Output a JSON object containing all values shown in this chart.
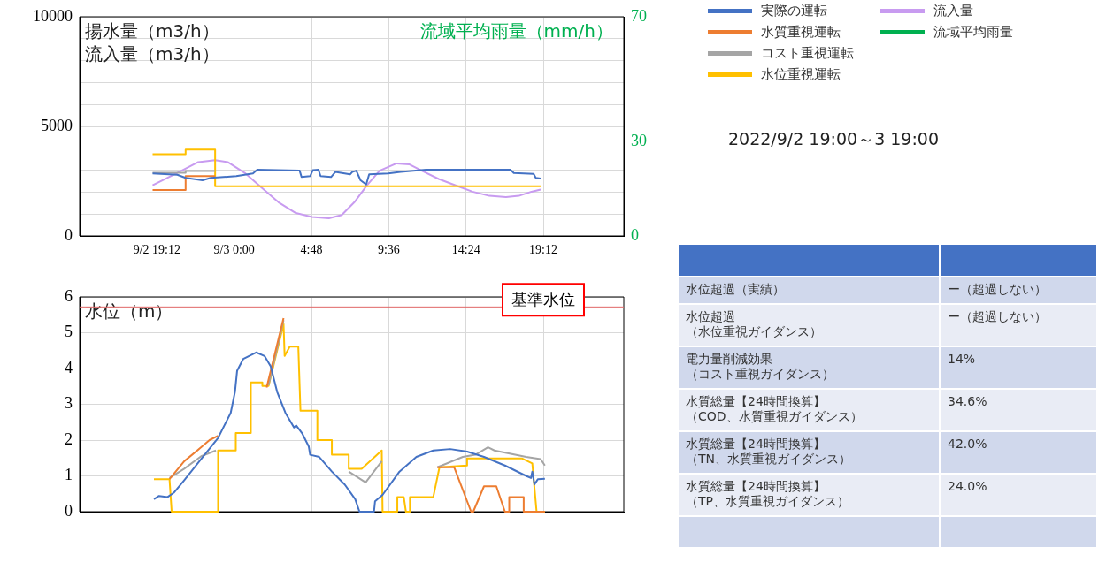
{
  "chart_data": [
    {
      "type": "line",
      "ylabel": "揚水量（m3/h）流入量（m3/h）",
      "y2label": "流域平均雨量（mm/h）",
      "legend": "right",
      "grid": true,
      "xlim": [
        "2022-09-02T14:24",
        "2022-09-04T00:12"
      ],
      "xticks": [
        {
          "value": "2022-09-02T19:12",
          "label": "9/2 19:12"
        },
        {
          "value": "2022-09-03T00:00",
          "label": "9/3 0:00"
        },
        {
          "value": "2022-09-03T04:48",
          "label": "4:48"
        },
        {
          "value": "2022-09-03T09:36",
          "label": "9:36"
        },
        {
          "value": "2022-09-03T14:24",
          "label": "14:24"
        },
        {
          "value": "2022-09-03T19:12",
          "label": "19:12"
        }
      ],
      "ylim": [
        0,
        10000
      ],
      "yticks": [
        0,
        {
          "value": 1000,
          "label": null
        },
        {
          "value": 2000,
          "label": null
        },
        {
          "value": 3000,
          "label": null
        },
        {
          "value": 4000,
          "label": null
        },
        5000,
        {
          "value": 6000,
          "label": null
        },
        {
          "value": 7000,
          "label": null
        },
        {
          "value": 8000,
          "label": null
        },
        {
          "value": 9000,
          "label": null
        },
        10000
      ],
      "y2lim": [
        0,
        70
      ],
      "y2ticks": [
        0,
        30,
        70
      ],
      "series": [
        {
          "name": "実際の運転",
          "color": "#4472c4",
          "x": [
            "2022-09-02T18:56",
            "2022-09-02T20:28",
            "2022-09-02T20:59",
            "2022-09-02T22:02",
            "2022-09-02T22:33",
            "2022-09-03T00:08",
            "2022-09-03T01:10",
            "2022-09-03T01:26",
            "2022-09-03T04:04",
            "2022-09-03T04:11",
            "2022-09-03T04:43",
            "2022-09-03T04:53",
            "2022-09-03T05:14",
            "2022-09-03T05:22",
            "2022-09-03T06:01",
            "2022-09-03T06:17",
            "2022-09-03T07:12",
            "2022-09-03T07:20",
            "2022-09-03T07:35",
            "2022-09-03T07:51",
            "2022-09-03T08:12",
            "2022-09-03T08:23",
            "2022-09-03T09:34",
            "2022-09-03T10:20",
            "2022-09-03T11:55",
            "2022-09-03T17:10",
            "2022-09-03T17:22",
            "2022-09-03T18:36",
            "2022-09-03T18:44",
            "2022-09-03T19:02"
          ],
          "values": [
            2850,
            2790,
            2650,
            2540,
            2650,
            2730,
            2850,
            3020,
            2980,
            2690,
            2730,
            3000,
            3020,
            2730,
            2690,
            2920,
            2810,
            2920,
            2980,
            2540,
            2350,
            2810,
            2850,
            2920,
            3020,
            3020,
            2870,
            2830,
            2650,
            2620
          ]
        },
        {
          "name": "水質重視運転",
          "color": "#ed7d31",
          "x": [
            "2022-09-02T18:56",
            "2022-09-02T20:59",
            "2022-09-02T20:59",
            "2022-09-02T22:49"
          ],
          "values": [
            2100,
            2100,
            2730,
            2730
          ]
        },
        {
          "name": "コスト重視運転",
          "color": "#a5a5a5",
          "x": [
            "2022-09-02T18:56",
            "2022-09-02T20:59",
            "2022-09-02T20:59",
            "2022-09-02T22:49"
          ],
          "values": [
            2880,
            2880,
            2960,
            2960
          ]
        },
        {
          "name": "水位重視運転",
          "color": "#ffc000",
          "x": [
            "2022-09-02T18:56",
            "2022-09-02T20:59",
            "2022-09-02T20:59",
            "2022-09-02T22:49",
            "2022-09-02T22:49",
            "2022-09-03T19:02"
          ],
          "values": [
            3730,
            3730,
            3940,
            3940,
            2270,
            2270
          ]
        },
        {
          "name": "流入量",
          "color": "#c89bf0",
          "x": [
            "2022-09-02T18:56",
            "2022-09-02T20:28",
            "2022-09-02T21:46",
            "2022-09-02T22:49",
            "2022-09-02T23:36",
            "2022-09-03T00:39",
            "2022-09-03T01:42",
            "2022-09-03T02:45",
            "2022-09-03T03:47",
            "2022-09-03T04:50",
            "2022-09-03T05:53",
            "2022-09-03T06:41",
            "2022-09-03T07:28",
            "2022-09-03T08:15",
            "2022-09-03T09:02",
            "2022-09-03T10:05",
            "2022-09-03T10:52",
            "2022-09-03T11:39",
            "2022-09-03T12:42",
            "2022-09-03T13:45",
            "2022-09-03T14:48",
            "2022-09-03T15:51",
            "2022-09-03T16:53",
            "2022-09-03T17:41",
            "2022-09-03T18:28",
            "2022-09-03T19:02"
          ],
          "values": [
            2310,
            2880,
            3370,
            3460,
            3370,
            2880,
            2210,
            1540,
            1060,
            870,
            810,
            960,
            1540,
            2310,
            2980,
            3310,
            3270,
            2980,
            2600,
            2310,
            2020,
            1830,
            1770,
            1830,
            2020,
            2120
          ]
        },
        {
          "name": "流域平均雨量",
          "color": "#00b050",
          "axis": "y2"
        }
      ]
    },
    {
      "type": "line",
      "ylabel": "水位（m）",
      "grid": true,
      "tick_labels": "y",
      "xlim": [
        "2022-09-02T14:24",
        "2022-09-04T00:12"
      ],
      "xticks": [
        {
          "value": "2022-09-02T19:12",
          "label": null
        },
        {
          "value": "2022-09-03T00:00",
          "label": null
        },
        {
          "value": "2022-09-03T04:48",
          "label": null
        },
        {
          "value": "2022-09-03T09:36",
          "label": null
        },
        {
          "value": "2022-09-03T14:24",
          "label": null
        },
        {
          "value": "2022-09-03T19:12",
          "label": null
        }
      ],
      "ylim": [
        0,
        6
      ],
      "yticks": [
        0,
        1,
        2,
        3,
        4,
        5,
        6
      ],
      "ref_lines": [
        {
          "axis": "y",
          "value": 5.72,
          "label": "基準水位",
          "color": "#e06666"
        }
      ],
      "series": [
        {
          "color": "#4472c4",
          "x": [
            "2022-09-02T19:01",
            "2022-09-02T19:20",
            "2022-09-02T19:52",
            "2022-09-02T20:15",
            "2022-09-02T20:54",
            "2022-09-02T21:57",
            "2022-09-02T23:00",
            "2022-09-02T23:47",
            "2022-09-03T00:03",
            "2022-09-03T00:11",
            "2022-09-03T00:34",
            "2022-09-03T01:22",
            "2022-09-03T01:53",
            "2022-09-03T02:16",
            "2022-09-03T02:40",
            "2022-09-03T03:11",
            "2022-09-03T03:43",
            "2022-09-03T03:51",
            "2022-09-03T04:14",
            "2022-09-03T04:38",
            "2022-09-03T04:43",
            "2022-09-03T05:17",
            "2022-09-03T06:04",
            "2022-09-03T06:52",
            "2022-09-03T07:31",
            "2022-09-03T07:47",
            "2022-09-03T08:41",
            "2022-09-03T08:45",
            "2022-09-03T09:13",
            "2022-09-03T10:16",
            "2022-09-03T11:19",
            "2022-09-03T12:22",
            "2022-09-03T13:25",
            "2022-09-03T14:28",
            "2022-09-03T15:31",
            "2022-09-03T16:49",
            "2022-09-03T18:08",
            "2022-09-03T18:26",
            "2022-09-03T18:31",
            "2022-09-03T18:39",
            "2022-09-03T18:52",
            "2022-09-03T19:18"
          ],
          "values": [
            0.35,
            0.44,
            0.41,
            0.53,
            0.88,
            1.47,
            2.06,
            2.76,
            3.35,
            3.94,
            4.27,
            4.45,
            4.35,
            4.06,
            3.35,
            2.76,
            2.35,
            2.41,
            2.18,
            1.82,
            1.59,
            1.53,
            1.12,
            0.76,
            0.35,
            0,
            0,
            0.29,
            0.47,
            1.12,
            1.53,
            1.71,
            1.75,
            1.68,
            1.53,
            1.29,
            1.0,
            0.94,
            1.12,
            0.76,
            0.91,
            0.92
          ]
        },
        {
          "color": "#ed7d31",
          "x": [
            "2022-09-02T19:59",
            "2022-09-02T20:54",
            "2022-09-02T21:57",
            "2022-09-02T22:28",
            "2022-09-02T23:00",
            "2022-09-03T00:00",
            "2022-09-03T02:01",
            "2022-09-03T03:04",
            "2022-09-03T06:00",
            "2022-09-03T12:37",
            "2022-09-03T13:40",
            "2022-09-03T14:43",
            "2022-09-03T14:51",
            "2022-09-03T15:31",
            "2022-09-03T16:17",
            "2022-09-03T16:49",
            "2022-09-03T17:05",
            "2022-09-03T17:05",
            "2022-09-03T17:59",
            "2022-09-03T17:59",
            "2022-09-03T19:18"
          ],
          "values": [
            0.91,
            1.41,
            1.8,
            2.0,
            2.12,
            null,
            3.47,
            5.41,
            null,
            1.24,
            1.24,
            0,
            0,
            0.71,
            0.71,
            0,
            0,
            0.41,
            0.41,
            0,
            0
          ]
        },
        {
          "color": "#a5a5a5",
          "x": [
            "2022-09-02T19:59",
            "2022-09-02T20:54",
            "2022-09-02T21:57",
            "2022-09-02T22:52",
            "2022-09-03T00:00",
            "2022-09-03T02:08",
            "2022-09-03T03:04",
            "2022-09-03T06:00",
            "2022-09-03T07:07",
            "2022-09-03T08:10",
            "2022-09-03T09:10",
            "2022-09-03T11:00",
            "2022-09-03T12:37",
            "2022-09-03T14:12",
            "2022-09-03T14:59",
            "2022-09-03T15:46",
            "2022-09-03T16:10",
            "2022-09-03T18:08",
            "2022-09-03T19:02",
            "2022-09-03T19:18"
          ],
          "values": [
            0.94,
            1.2,
            1.55,
            1.71,
            null,
            3.53,
            5.35,
            null,
            1.12,
            0.82,
            1.41,
            null,
            1.24,
            1.53,
            1.59,
            1.8,
            1.71,
            1.53,
            1.47,
            1.29
          ]
        },
        {
          "color": "#ffc000",
          "x": [
            "2022-09-02T19:01",
            "2022-09-02T19:59",
            "2022-09-02T20:07",
            "2022-09-02T23:00",
            "2022-09-02T23:00",
            "2022-09-03T00:06",
            "2022-09-03T00:06",
            "2022-09-03T01:02",
            "2022-09-03T01:02",
            "2022-09-03T01:45",
            "2022-09-03T01:45",
            "2022-09-03T02:08",
            "2022-09-03T03:04",
            "2022-09-03T03:08",
            "2022-09-03T03:27",
            "2022-09-03T03:59",
            "2022-09-03T04:07",
            "2022-09-03T05:10",
            "2022-09-03T05:10",
            "2022-09-03T06:04",
            "2022-09-03T06:04",
            "2022-09-03T07:07",
            "2022-09-03T07:07",
            "2022-09-03T07:55",
            "2022-09-03T09:10",
            "2022-09-03T09:13",
            "2022-09-03T10:08",
            "2022-09-03T10:08",
            "2022-09-03T10:32",
            "2022-09-03T10:40",
            "2022-09-03T10:55",
            "2022-09-03T10:55",
            "2022-09-03T12:22",
            "2022-09-03T12:45",
            "2022-09-03T14:28",
            "2022-09-03T14:28",
            "2022-09-03T17:52",
            "2022-09-03T18:31",
            "2022-09-03T18:47",
            "2022-09-03T19:18"
          ],
          "values": [
            0.91,
            0.91,
            0,
            0,
            1.71,
            1.71,
            2.2,
            2.2,
            3.61,
            3.61,
            3.51,
            3.51,
            5.24,
            4.35,
            4.61,
            4.61,
            2.82,
            2.82,
            2.0,
            2.0,
            1.59,
            1.59,
            1.2,
            1.2,
            1.71,
            0,
            0,
            0.41,
            0.41,
            0,
            0,
            0.41,
            0.41,
            1.24,
            1.29,
            1.49,
            1.49,
            1.35,
            0,
            0
          ]
        }
      ]
    },
    {
      "type": "other",
      "title": "2022/9/2 19:00～3 19:00",
      "annotations": [
        "水位超過（実績）",
        "ー（超過しない）",
        "水位超過（水位重視ガイダンス）",
        "ー（超過しない）",
        "電力量削減効果（コスト重視ガイダンス）",
        "14%",
        "水質総量【24時間換算】（COD、水質重視ガイダンス）",
        "34.6%",
        "水質総量【24時間換算】（TN、水質重視ガイダンス）",
        "42.0%",
        "水質総量【24時間換算】（TP、水質重視ガイダンス）",
        "24.0%"
      ]
    }
  ]
}
